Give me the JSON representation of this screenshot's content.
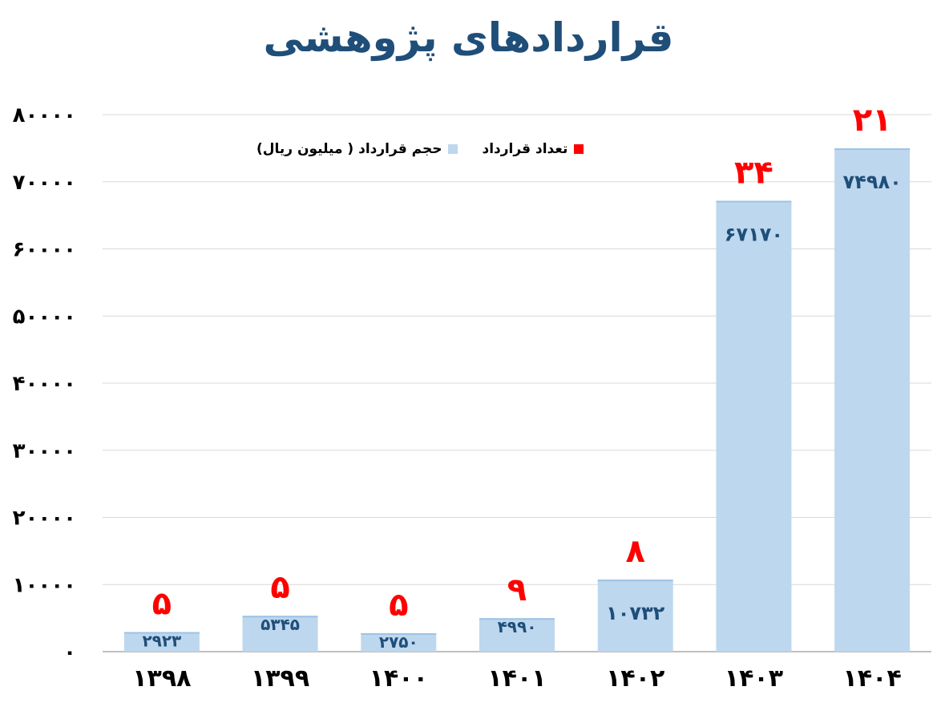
{
  "chart_data": {
    "type": "bar",
    "title": "قراردادهای پژوهشی",
    "categories": [
      "۱۳۹۸",
      "۱۳۹۹",
      "۱۴۰۰",
      "۱۴۰۱",
      "۱۴۰۲",
      "۱۴۰۳",
      "۱۴۰۴"
    ],
    "series": [
      {
        "name": "حجم قرارداد ( میلیون ریال)",
        "values": [
          2923,
          5345,
          2750,
          4990,
          10732,
          67170,
          74980
        ],
        "labels": [
          "۲۹۲۳",
          "۵۳۴۵",
          "۲۷۵۰",
          "۴۹۹۰",
          "۱۰۷۳۲",
          "۶۷۱۷۰",
          "۷۴۹۸۰"
        ],
        "color": "#bdd7ee"
      },
      {
        "name": "تعداد قرارداد",
        "values": [
          5,
          5,
          5,
          9,
          8,
          34,
          21
        ],
        "labels": [
          "۵",
          "۵",
          "۵",
          "۹",
          "۸",
          "۳۴",
          "۲۱"
        ],
        "color": "#ff0000"
      }
    ],
    "ylim": [
      0,
      80000
    ],
    "yticks": [
      0,
      10000,
      20000,
      30000,
      40000,
      50000,
      60000,
      70000,
      80000
    ],
    "ytick_labels": [
      "۰",
      "۱۰۰۰۰",
      "۲۰۰۰۰",
      "۳۰۰۰۰",
      "۴۰۰۰۰",
      "۵۰۰۰۰",
      "۶۰۰۰۰",
      "۷۰۰۰۰",
      "۸۰۰۰۰"
    ],
    "grid": true,
    "legend_position": "top-left"
  }
}
